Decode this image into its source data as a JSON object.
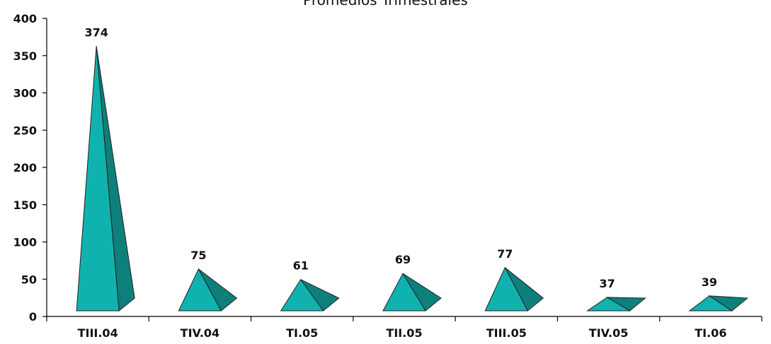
{
  "chart_data": {
    "type": "bar",
    "title": "Promedios Trimestrales",
    "categories": [
      "TIII.04",
      "TIV.04",
      "TI.05",
      "TII.05",
      "TIII.05",
      "TIV.05",
      "TI.06"
    ],
    "values": [
      374,
      75,
      61,
      69,
      77,
      37,
      39
    ],
    "data_labels": [
      "374",
      "75",
      "61",
      "69",
      "77",
      "37",
      "39"
    ],
    "ylim": [
      0,
      400
    ],
    "yticks": [
      0,
      50,
      100,
      150,
      200,
      250,
      300,
      350,
      400
    ],
    "ytick_labels": [
      "0",
      "50",
      "100",
      "150",
      "200",
      "250",
      "300",
      "350",
      "400"
    ],
    "xlabel": "",
    "ylabel": "",
    "grid": false,
    "bar_shape": "pyramid",
    "colors": {
      "front": "#10b2ae",
      "side": "#0e807c",
      "outline": "#222222"
    }
  }
}
